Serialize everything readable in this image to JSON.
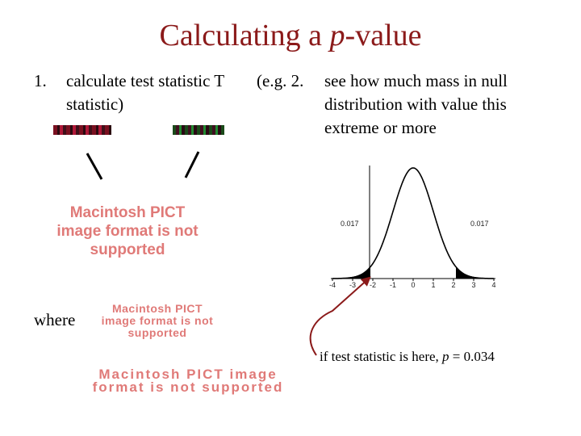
{
  "title": {
    "prefix": "Calculating a ",
    "italic": "p",
    "suffix": "-value"
  },
  "step1": {
    "number": "1.",
    "text": "calculate test statistic T statistic)"
  },
  "step2": {
    "lead": "(e.g. 2.",
    "text": "see how much mass in null distribution with value this extreme or more"
  },
  "pict_placeholder": [
    "Macintosh PICT image format is not supported",
    "Macintosh PICT image format is not supported",
    "Macintosh PICT image format is not supported"
  ],
  "where_label": "where",
  "note": {
    "prefix": "if test statistic is here, ",
    "var": "p",
    "suffix": " = 0.034"
  },
  "chart_data": {
    "type": "area",
    "x_ticks": [
      "-4",
      "-3",
      "-2",
      "-1",
      "0",
      "1",
      "2",
      "3",
      "4"
    ],
    "xlim": [
      -4,
      4
    ],
    "tail_left_label": "0.017",
    "tail_right_label": "0.017",
    "tail_cutoff": 2.12,
    "curve": "standard normal density",
    "shaded": "both tails"
  },
  "colors": {
    "title": "#8b1a1a",
    "arrow": "#8b1a1a",
    "placeholder": "#e07a78"
  }
}
